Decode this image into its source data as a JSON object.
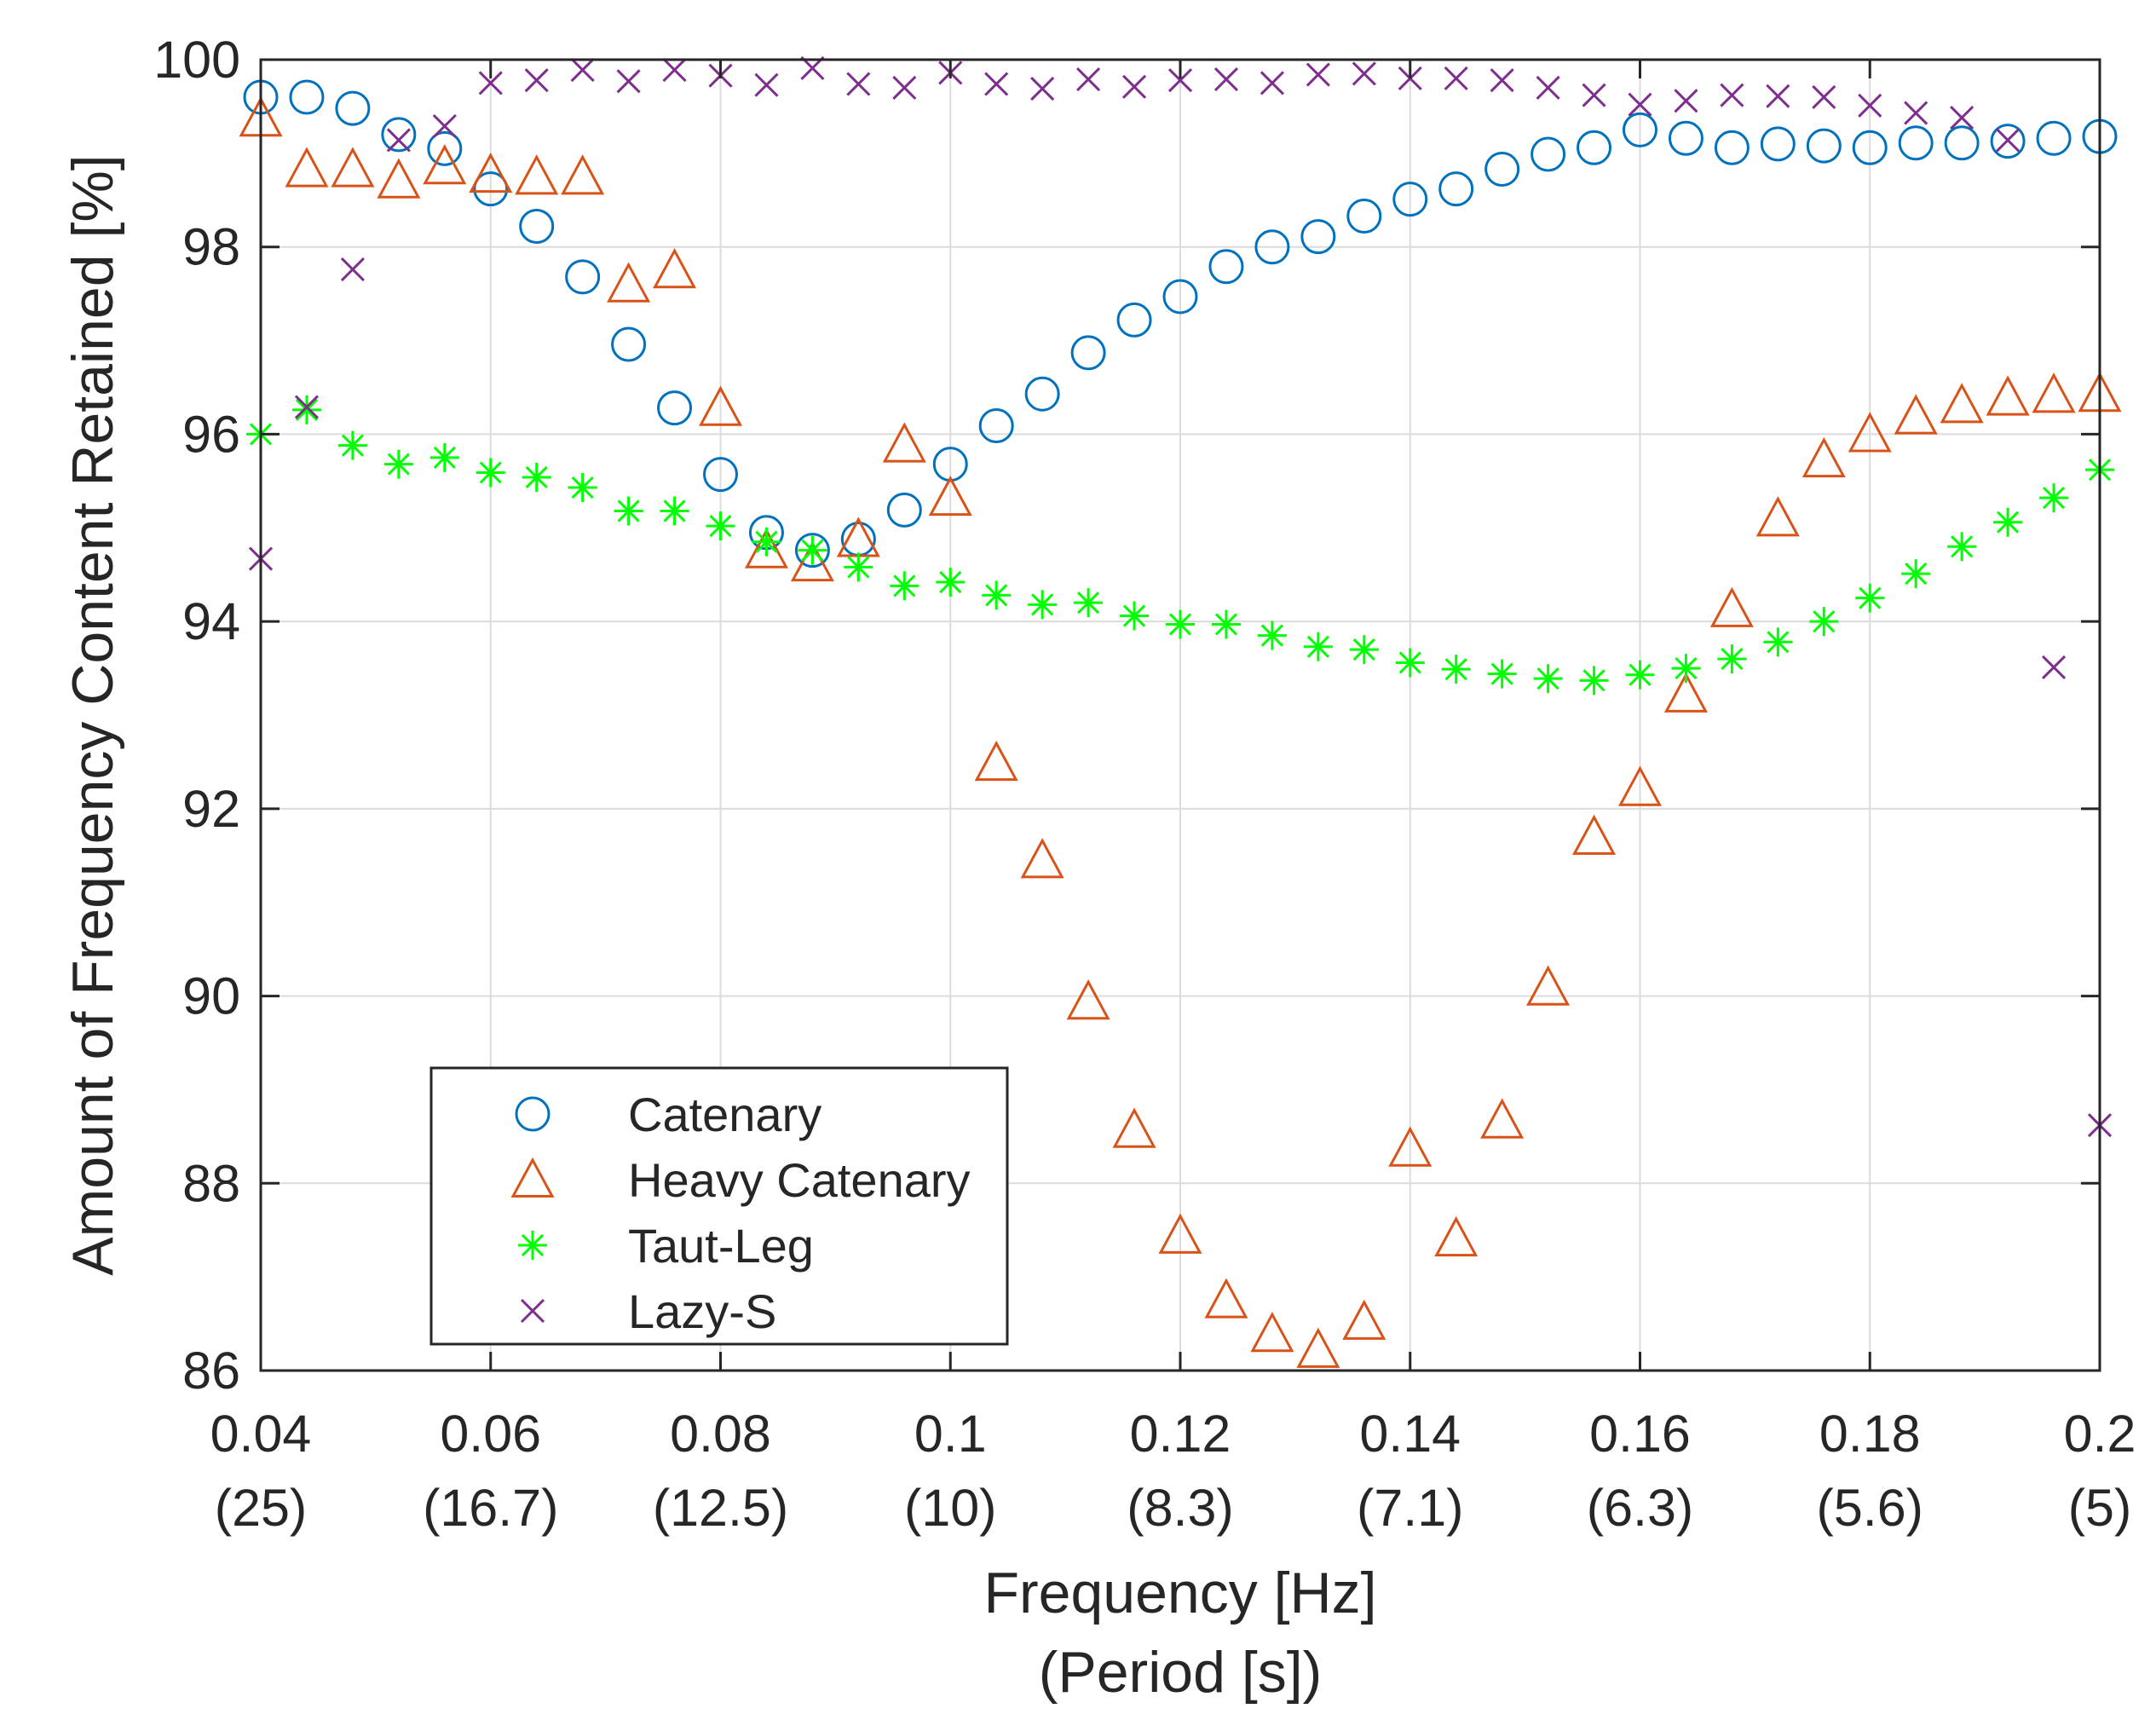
{
  "chart_data": {
    "type": "scatter",
    "title": "",
    "xlabel": "Frequency [Hz]",
    "xlabel2": "(Period [s])",
    "ylabel": "Amount of Frequency Content Retained [%]",
    "xlim": [
      0.04,
      0.2
    ],
    "ylim": [
      86,
      100
    ],
    "grid": true,
    "legend_position": "bottom-left",
    "x_ticks": [
      {
        "value": 0.04,
        "label": "0.04",
        "sublabel": "(25)"
      },
      {
        "value": 0.06,
        "label": "0.06",
        "sublabel": "(16.7)"
      },
      {
        "value": 0.08,
        "label": "0.08",
        "sublabel": "(12.5)"
      },
      {
        "value": 0.1,
        "label": "0.1",
        "sublabel": "(10)"
      },
      {
        "value": 0.12,
        "label": "0.12",
        "sublabel": "(8.3)"
      },
      {
        "value": 0.14,
        "label": "0.14",
        "sublabel": "(7.1)"
      },
      {
        "value": 0.16,
        "label": "0.16",
        "sublabel": "(6.3)"
      },
      {
        "value": 0.18,
        "label": "0.18",
        "sublabel": "(5.6)"
      },
      {
        "value": 0.2,
        "label": "0.2",
        "sublabel": "(5)"
      }
    ],
    "y_ticks": [
      {
        "value": 86,
        "label": "86"
      },
      {
        "value": 88,
        "label": "88"
      },
      {
        "value": 90,
        "label": "90"
      },
      {
        "value": 92,
        "label": "92"
      },
      {
        "value": 94,
        "label": "94"
      },
      {
        "value": 96,
        "label": "96"
      },
      {
        "value": 98,
        "label": "98"
      },
      {
        "value": 100,
        "label": "100"
      }
    ],
    "series": [
      {
        "name": "Catenary",
        "marker": "circle",
        "color": "#0072BD",
        "x": [
          0.04,
          0.044,
          0.048,
          0.052,
          0.056,
          0.06,
          0.064,
          0.068,
          0.072,
          0.076,
          0.08,
          0.084,
          0.088,
          0.092,
          0.096,
          0.1,
          0.104,
          0.108,
          0.112,
          0.116,
          0.12,
          0.124,
          0.128,
          0.132,
          0.136,
          0.14,
          0.144,
          0.148,
          0.152,
          0.156,
          0.16,
          0.164,
          0.168,
          0.172,
          0.176,
          0.18,
          0.184,
          0.188,
          0.192,
          0.196,
          0.2
        ],
        "y": [
          99.6,
          99.6,
          99.48,
          99.2,
          99.05,
          98.62,
          98.22,
          97.68,
          96.96,
          96.28,
          95.57,
          94.95,
          94.76,
          94.88,
          95.19,
          95.68,
          96.09,
          96.43,
          96.87,
          97.22,
          97.47,
          97.79,
          98.0,
          98.11,
          98.33,
          98.51,
          98.62,
          98.83,
          98.99,
          99.06,
          99.25,
          99.16,
          99.06,
          99.1,
          99.08,
          99.06,
          99.11,
          99.11,
          99.13,
          99.16,
          99.18
        ]
      },
      {
        "name": "Heavy Catenary",
        "marker": "triangle",
        "color": "#D95319",
        "x": [
          0.04,
          0.044,
          0.048,
          0.052,
          0.056,
          0.06,
          0.064,
          0.068,
          0.072,
          0.076,
          0.08,
          0.084,
          0.088,
          0.092,
          0.096,
          0.1,
          0.104,
          0.108,
          0.112,
          0.116,
          0.12,
          0.124,
          0.128,
          0.132,
          0.136,
          0.14,
          0.144,
          0.148,
          0.152,
          0.156,
          0.16,
          0.164,
          0.168,
          0.172,
          0.176,
          0.18,
          0.184,
          0.188,
          0.192,
          0.196,
          0.2
        ],
        "y": [
          99.37,
          98.83,
          98.83,
          98.71,
          98.86,
          98.77,
          98.75,
          98.75,
          97.6,
          97.75,
          96.28,
          94.76,
          94.62,
          94.88,
          95.89,
          95.32,
          92.49,
          91.45,
          89.94,
          88.57,
          87.44,
          86.75,
          86.39,
          86.22,
          86.52,
          88.37,
          87.41,
          88.67,
          90.09,
          91.7,
          92.22,
          93.22,
          94.13,
          95.1,
          95.73,
          96.0,
          96.19,
          96.31,
          96.39,
          96.42,
          96.43
        ]
      },
      {
        "name": "Taut-Leg",
        "marker": "asterisk",
        "color": "#00FF00",
        "x": [
          0.04,
          0.044,
          0.048,
          0.052,
          0.056,
          0.06,
          0.064,
          0.068,
          0.072,
          0.076,
          0.08,
          0.084,
          0.088,
          0.092,
          0.096,
          0.1,
          0.104,
          0.108,
          0.112,
          0.116,
          0.12,
          0.124,
          0.128,
          0.132,
          0.136,
          0.14,
          0.144,
          0.148,
          0.152,
          0.156,
          0.16,
          0.164,
          0.168,
          0.172,
          0.176,
          0.18,
          0.184,
          0.188,
          0.192,
          0.196,
          0.2
        ],
        "y": [
          96.0,
          96.26,
          95.88,
          95.68,
          95.75,
          95.59,
          95.54,
          95.43,
          95.18,
          95.18,
          95.02,
          94.85,
          94.76,
          94.58,
          94.38,
          94.42,
          94.28,
          94.18,
          94.2,
          94.06,
          93.97,
          93.97,
          93.85,
          93.73,
          93.7,
          93.56,
          93.49,
          93.44,
          93.39,
          93.37,
          93.43,
          93.5,
          93.6,
          93.78,
          94.0,
          94.25,
          94.51,
          94.8,
          95.06,
          95.32,
          95.62
        ]
      },
      {
        "name": "Lazy-S",
        "marker": "x",
        "color": "#7E2F8E",
        "x": [
          0.04,
          0.044,
          0.048,
          0.052,
          0.056,
          0.06,
          0.064,
          0.068,
          0.072,
          0.076,
          0.08,
          0.084,
          0.088,
          0.092,
          0.096,
          0.1,
          0.104,
          0.108,
          0.112,
          0.116,
          0.12,
          0.124,
          0.128,
          0.132,
          0.136,
          0.14,
          0.144,
          0.148,
          0.152,
          0.156,
          0.16,
          0.164,
          0.168,
          0.172,
          0.176,
          0.18,
          0.184,
          0.188,
          0.192,
          0.196,
          0.2
        ],
        "y": [
          94.67,
          96.29,
          97.76,
          99.14,
          99.29,
          99.75,
          99.78,
          99.89,
          99.77,
          99.89,
          99.83,
          99.73,
          99.91,
          99.74,
          99.7,
          99.86,
          99.74,
          99.69,
          99.79,
          99.71,
          99.78,
          99.79,
          99.75,
          99.84,
          99.85,
          99.8,
          99.8,
          99.78,
          99.7,
          99.62,
          99.52,
          99.56,
          99.62,
          99.61,
          99.6,
          99.51,
          99.43,
          99.38,
          99.14,
          93.51,
          88.62
        ]
      }
    ]
  }
}
